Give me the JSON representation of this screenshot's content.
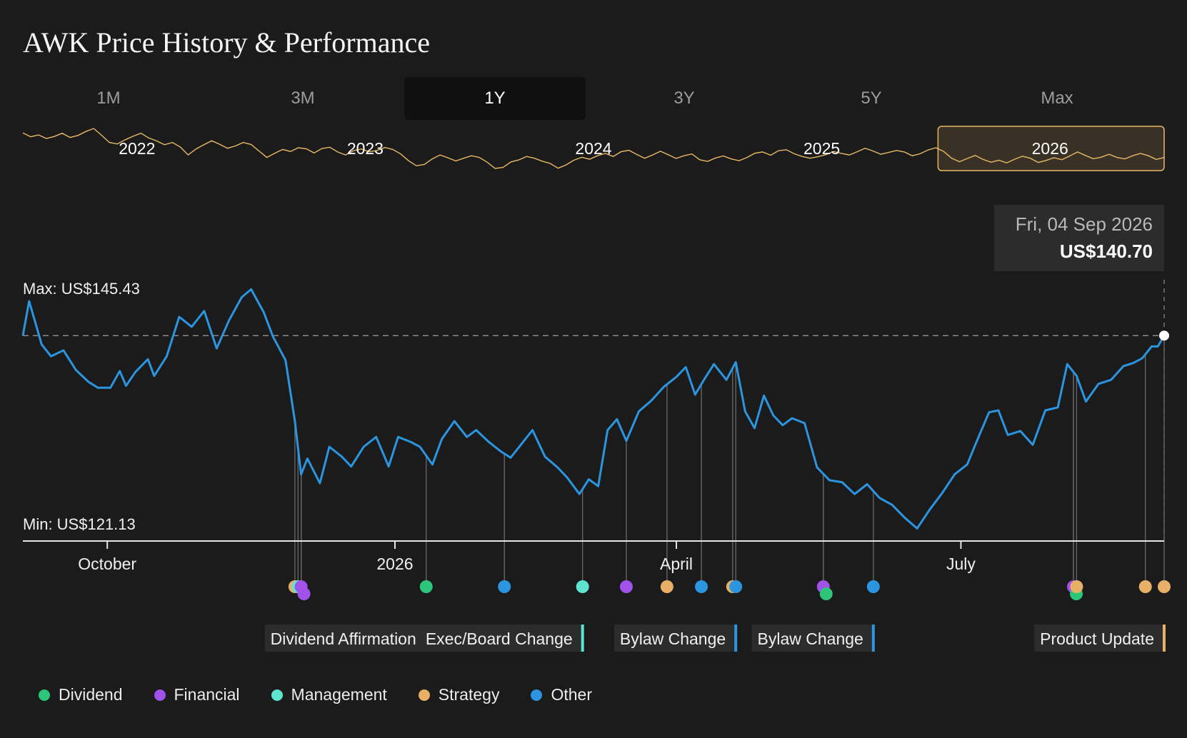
{
  "title": "AWK Price History & Performance",
  "tabs": [
    {
      "label": "1M",
      "active": false
    },
    {
      "label": "3M",
      "active": false
    },
    {
      "label": "1Y",
      "active": true
    },
    {
      "label": "3Y",
      "active": false
    },
    {
      "label": "5Y",
      "active": false
    },
    {
      "label": "Max",
      "active": false
    }
  ],
  "tooltip": {
    "date": "Fri, 04 Sep 2026",
    "price": "US$140.70"
  },
  "colors": {
    "line": "#2b95e0",
    "overview": "#e8b866",
    "background": "#1b1b1b",
    "Dividend": "#2cc57a",
    "Financial": "#a052ea",
    "Management": "#5ee3cf",
    "Strategy": "#e8b066",
    "Other": "#2b95e0"
  },
  "legend": [
    {
      "label": "Dividend",
      "color": "#2cc57a"
    },
    {
      "label": "Financial",
      "color": "#a052ea"
    },
    {
      "label": "Management",
      "color": "#5ee3cf"
    },
    {
      "label": "Strategy",
      "color": "#e8b066"
    },
    {
      "label": "Other",
      "color": "#2b95e0"
    }
  ],
  "chart_data": {
    "type": "line",
    "title": "AWK Price History & Performance",
    "currency": "US$",
    "max_label": "Max: US$145.43",
    "min_label": "Min: US$121.13",
    "max": 145.43,
    "min": 121.13,
    "reference_line": 140.7,
    "x_start": "2025-09-04",
    "x_end": "2026-09-04",
    "x_ticks": [
      {
        "label": "October",
        "date": "2025-10-01"
      },
      {
        "label": "2026",
        "date": "2026-01-01"
      },
      {
        "label": "April",
        "date": "2026-04-01"
      },
      {
        "label": "July",
        "date": "2026-07-01"
      }
    ],
    "series": [
      {
        "values": [
          [
            "2025-09-04",
            140.7
          ],
          [
            "2025-09-06",
            144.2
          ],
          [
            "2025-09-10",
            139.8
          ],
          [
            "2025-09-13",
            138.6
          ],
          [
            "2025-09-17",
            139.2
          ],
          [
            "2025-09-21",
            137.2
          ],
          [
            "2025-09-25",
            136.0
          ],
          [
            "2025-09-28",
            135.4
          ],
          [
            "2025-10-02",
            135.4
          ],
          [
            "2025-10-05",
            137.1
          ],
          [
            "2025-10-07",
            135.6
          ],
          [
            "2025-10-10",
            137.0
          ],
          [
            "2025-10-14",
            138.3
          ],
          [
            "2025-10-16",
            136.6
          ],
          [
            "2025-10-20",
            138.6
          ],
          [
            "2025-10-24",
            142.6
          ],
          [
            "2025-10-28",
            141.6
          ],
          [
            "2025-11-01",
            143.2
          ],
          [
            "2025-11-05",
            139.4
          ],
          [
            "2025-11-09",
            142.3
          ],
          [
            "2025-11-13",
            144.6
          ],
          [
            "2025-11-16",
            145.4
          ],
          [
            "2025-11-20",
            143.1
          ],
          [
            "2025-11-23",
            140.6
          ],
          [
            "2025-11-27",
            138.2
          ],
          [
            "2025-11-30",
            132.0
          ],
          [
            "2025-12-02",
            126.6
          ],
          [
            "2025-12-04",
            128.2
          ],
          [
            "2025-12-08",
            125.7
          ],
          [
            "2025-12-11",
            129.4
          ],
          [
            "2025-12-15",
            128.4
          ],
          [
            "2025-12-18",
            127.4
          ],
          [
            "2025-12-22",
            129.4
          ],
          [
            "2025-12-26",
            130.4
          ],
          [
            "2025-12-30",
            127.4
          ],
          [
            "2026-01-02",
            130.4
          ],
          [
            "2026-01-06",
            129.9
          ],
          [
            "2026-01-09",
            129.4
          ],
          [
            "2026-01-13",
            127.6
          ],
          [
            "2026-01-16",
            130.2
          ],
          [
            "2026-01-20",
            132.0
          ],
          [
            "2026-01-24",
            130.4
          ],
          [
            "2026-01-27",
            131.1
          ],
          [
            "2026-01-31",
            129.9
          ],
          [
            "2026-02-04",
            128.9
          ],
          [
            "2026-02-07",
            128.3
          ],
          [
            "2026-02-11",
            129.9
          ],
          [
            "2026-02-14",
            131.1
          ],
          [
            "2026-02-18",
            128.4
          ],
          [
            "2026-02-22",
            127.3
          ],
          [
            "2026-02-25",
            126.3
          ],
          [
            "2026-03-01",
            124.6
          ],
          [
            "2026-03-04",
            126.1
          ],
          [
            "2026-03-07",
            125.4
          ],
          [
            "2026-03-10",
            131.1
          ],
          [
            "2026-03-13",
            132.2
          ],
          [
            "2026-03-16",
            130.0
          ],
          [
            "2026-03-20",
            133.0
          ],
          [
            "2026-03-24",
            134.1
          ],
          [
            "2026-03-28",
            135.5
          ],
          [
            "2026-04-01",
            136.5
          ],
          [
            "2026-04-04",
            137.5
          ],
          [
            "2026-04-07",
            134.7
          ],
          [
            "2026-04-10",
            136.3
          ],
          [
            "2026-04-13",
            137.8
          ],
          [
            "2026-04-17",
            136.2
          ],
          [
            "2026-04-20",
            138.0
          ],
          [
            "2026-04-23",
            133.0
          ],
          [
            "2026-04-26",
            131.3
          ],
          [
            "2026-04-29",
            134.6
          ],
          [
            "2026-05-02",
            132.6
          ],
          [
            "2026-05-05",
            131.6
          ],
          [
            "2026-05-08",
            132.3
          ],
          [
            "2026-05-12",
            131.8
          ],
          [
            "2026-05-16",
            127.3
          ],
          [
            "2026-05-20",
            126.0
          ],
          [
            "2026-05-24",
            125.8
          ],
          [
            "2026-05-28",
            124.6
          ],
          [
            "2026-06-01",
            125.6
          ],
          [
            "2026-06-05",
            124.2
          ],
          [
            "2026-06-09",
            123.5
          ],
          [
            "2026-06-13",
            122.2
          ],
          [
            "2026-06-17",
            121.1
          ],
          [
            "2026-06-21",
            123.0
          ],
          [
            "2026-06-25",
            124.7
          ],
          [
            "2026-06-29",
            126.6
          ],
          [
            "2026-07-03",
            127.6
          ],
          [
            "2026-07-06",
            129.9
          ],
          [
            "2026-07-10",
            132.9
          ],
          [
            "2026-07-13",
            133.1
          ],
          [
            "2026-07-16",
            130.6
          ],
          [
            "2026-07-20",
            131.0
          ],
          [
            "2026-07-24",
            129.6
          ],
          [
            "2026-07-28",
            133.1
          ],
          [
            "2026-08-01",
            133.4
          ],
          [
            "2026-08-04",
            137.8
          ],
          [
            "2026-08-07",
            136.6
          ],
          [
            "2026-08-10",
            134.0
          ],
          [
            "2026-08-14",
            135.8
          ],
          [
            "2026-08-18",
            136.2
          ],
          [
            "2026-08-22",
            137.6
          ],
          [
            "2026-08-25",
            137.9
          ],
          [
            "2026-08-28",
            138.4
          ],
          [
            "2026-08-31",
            139.6
          ],
          [
            "2026-09-02",
            139.6
          ],
          [
            "2026-09-04",
            140.7
          ]
        ]
      }
    ],
    "events": [
      {
        "date": "2025-11-30",
        "category": "Strategy"
      },
      {
        "date": "2025-12-01",
        "category": "Management"
      },
      {
        "date": "2025-12-02",
        "category": "Financial"
      },
      {
        "date": "2025-12-02",
        "category": "Financial"
      },
      {
        "date": "2026-01-11",
        "category": "Dividend",
        "label": "Dividend Affirmation"
      },
      {
        "date": "2026-02-05",
        "category": "Other"
      },
      {
        "date": "2026-03-02",
        "category": "Management",
        "label": "Exec/Board Change"
      },
      {
        "date": "2026-03-16",
        "category": "Financial"
      },
      {
        "date": "2026-03-29",
        "category": "Strategy"
      },
      {
        "date": "2026-04-09",
        "category": "Other"
      },
      {
        "date": "2026-04-19",
        "category": "Strategy"
      },
      {
        "date": "2026-04-20",
        "category": "Other",
        "label": "Bylaw Change"
      },
      {
        "date": "2026-05-18",
        "category": "Financial"
      },
      {
        "date": "2026-05-18",
        "category": "Dividend"
      },
      {
        "date": "2026-06-03",
        "category": "Other",
        "label": "Bylaw Change"
      },
      {
        "date": "2026-08-06",
        "category": "Financial"
      },
      {
        "date": "2026-08-06",
        "category": "Dividend"
      },
      {
        "date": "2026-08-07",
        "category": "Strategy"
      },
      {
        "date": "2026-08-29",
        "category": "Strategy"
      },
      {
        "date": "2026-09-04",
        "category": "Strategy",
        "label": "Product Update"
      }
    ],
    "overview": {
      "year_labels": [
        "2022",
        "2023",
        "2024",
        "2025",
        "2026"
      ],
      "selected_year": "2026",
      "values": [
        145.0,
        143.5,
        144.2,
        142.8,
        143.6,
        144.9,
        143.2,
        144.0,
        145.6,
        146.8,
        144.1,
        141.2,
        140.6,
        142.3,
        143.7,
        144.9,
        143.0,
        141.8,
        140.3,
        141.2,
        139.4,
        136.2,
        138.6,
        140.3,
        141.9,
        140.5,
        138.9,
        139.8,
        141.2,
        140.4,
        137.8,
        135.2,
        136.9,
        138.4,
        137.6,
        139.1,
        138.7,
        137.0,
        138.8,
        139.3,
        137.4,
        136.2,
        137.9,
        138.6,
        137.5,
        138.0,
        139.2,
        138.4,
        136.6,
        133.9,
        131.9,
        132.4,
        134.6,
        136.2,
        135.1,
        133.8,
        134.9,
        135.9,
        135.2,
        133.3,
        130.8,
        131.2,
        133.4,
        134.2,
        135.6,
        134.9,
        133.7,
        132.8,
        130.9,
        132.2,
        134.1,
        135.3,
        134.5,
        135.9,
        136.8,
        135.6,
        137.5,
        138.1,
        136.4,
        134.9,
        136.2,
        137.7,
        136.3,
        134.8,
        135.9,
        136.6,
        134.3,
        133.6,
        135.0,
        135.8,
        134.6,
        133.9,
        135.2,
        136.9,
        137.4,
        136.1,
        137.9,
        138.3,
        136.7,
        135.6,
        134.9,
        135.5,
        136.3,
        137.6,
        136.8,
        136.2,
        137.5,
        138.9,
        137.8,
        136.5,
        137.2,
        138.0,
        137.4,
        135.9,
        136.7,
        138.2,
        139.1,
        137.6,
        134.9,
        133.5,
        134.8,
        136.0,
        134.4,
        133.3,
        134.1,
        133.0,
        134.5,
        135.7,
        134.9,
        133.2,
        134.0,
        135.1,
        134.3,
        135.8,
        137.4,
        136.0,
        134.7,
        135.3,
        136.5,
        135.2,
        134.6,
        135.9,
        136.8,
        135.9,
        134.4,
        135.2
      ]
    }
  }
}
